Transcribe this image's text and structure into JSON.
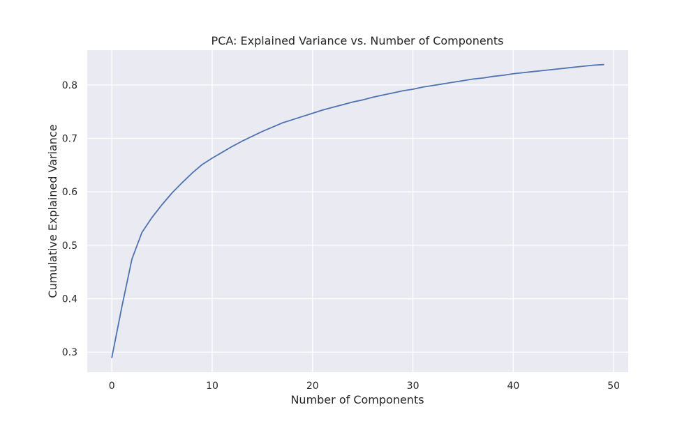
{
  "chart_data": {
    "type": "line",
    "title": "PCA: Explained Variance vs. Number of Components",
    "xlabel": "Number of Components",
    "ylabel": "Cumulative Explained Variance",
    "xlim": [
      -2.45,
      51.45
    ],
    "ylim": [
      0.2625,
      0.865
    ],
    "xticks": [
      0,
      10,
      20,
      30,
      40,
      50
    ],
    "yticks": [
      0.3,
      0.4,
      0.5,
      0.6,
      0.7,
      0.8
    ],
    "grid": true,
    "style": {
      "background": "#eaeaf2",
      "grid_color": "#ffffff",
      "line_color": "#4c72b0"
    },
    "series": [
      {
        "x": [
          0,
          1,
          2,
          3,
          4,
          5,
          6,
          7,
          8,
          9,
          10,
          11,
          12,
          13,
          14,
          15,
          16,
          17,
          18,
          19,
          20,
          21,
          22,
          23,
          24,
          25,
          26,
          27,
          28,
          29,
          30,
          31,
          32,
          33,
          34,
          35,
          36,
          37,
          38,
          39,
          40,
          41,
          42,
          43,
          44,
          45,
          46,
          47,
          48,
          49
        ],
        "values": [
          0.29,
          0.385,
          0.474,
          0.524,
          0.552,
          0.576,
          0.598,
          0.617,
          0.635,
          0.651,
          0.663,
          0.674,
          0.685,
          0.695,
          0.704,
          0.713,
          0.721,
          0.729,
          0.735,
          0.741,
          0.747,
          0.753,
          0.758,
          0.763,
          0.768,
          0.772,
          0.777,
          0.781,
          0.785,
          0.789,
          0.792,
          0.796,
          0.799,
          0.802,
          0.805,
          0.808,
          0.811,
          0.813,
          0.816,
          0.818,
          0.821,
          0.823,
          0.825,
          0.827,
          0.829,
          0.831,
          0.833,
          0.835,
          0.837,
          0.838
        ]
      }
    ]
  }
}
